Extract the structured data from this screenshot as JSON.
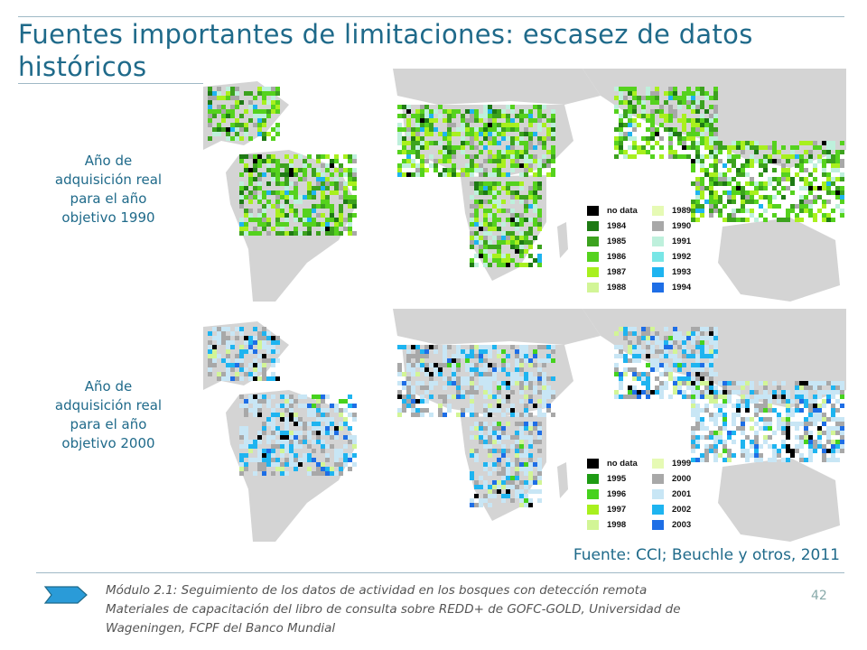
{
  "slide": {
    "title": "Fuentes importantes de limitaciones: escasez de datos históricos",
    "label_1990": "Año de adquisición real para el año objetivo 1990",
    "label_2000": "Año de adquisición real para el año objetivo 2000",
    "source": "Fuente: CCI; Beuchle y otros, 2011",
    "footer_line1": "Módulo 2.1: Seguimiento de los datos de actividad en los bosques con detección remota",
    "footer_line2": "Materiales de capacitación del libro de consulta sobre REDD+ de GOFC-GOLD, Universidad de Wageningen, FCPF del Banco Mundial",
    "page_number": "42"
  },
  "legend_1990": [
    {
      "label": "no data",
      "color": "#000000"
    },
    {
      "label": "1984",
      "color": "#1e7a14"
    },
    {
      "label": "1985",
      "color": "#3ca21e"
    },
    {
      "label": "1986",
      "color": "#55d21e"
    },
    {
      "label": "1987",
      "color": "#a8f01e"
    },
    {
      "label": "1988",
      "color": "#d2f596"
    },
    {
      "label": "1989",
      "color": "#e6fab4"
    },
    {
      "label": "1990",
      "color": "#a8a8a8"
    },
    {
      "label": "1991",
      "color": "#bef0dc"
    },
    {
      "label": "1992",
      "color": "#78e6e6"
    },
    {
      "label": "1993",
      "color": "#1eb4f0"
    },
    {
      "label": "1994",
      "color": "#1e6ee6"
    }
  ],
  "legend_2000": [
    {
      "label": "no data",
      "color": "#000000"
    },
    {
      "label": "1995",
      "color": "#1e9b14"
    },
    {
      "label": "1996",
      "color": "#46d21e"
    },
    {
      "label": "1997",
      "color": "#a8f01e"
    },
    {
      "label": "1998",
      "color": "#d2f596"
    },
    {
      "label": "1999",
      "color": "#e6fab4"
    },
    {
      "label": "2000",
      "color": "#a8a8a8"
    },
    {
      "label": "2001",
      "color": "#c8e6f5"
    },
    {
      "label": "2002",
      "color": "#1eb4f0"
    },
    {
      "label": "2003",
      "color": "#1e6ee6"
    }
  ]
}
